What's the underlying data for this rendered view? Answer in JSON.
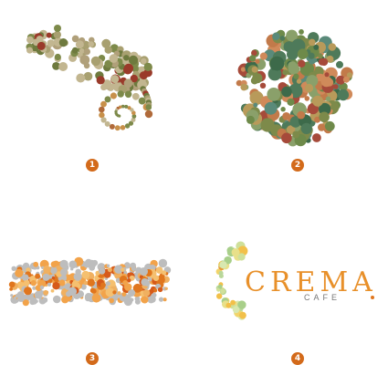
{
  "colors": {
    "badge": "#d36a1a",
    "tan": "#c2b690",
    "olive": "#7d8a4a",
    "rust": "#9a3a2a",
    "green_dark": "#3d6a4a",
    "teal": "#5a8a7a",
    "orange": "#e0761e",
    "orange_light": "#f2a34a",
    "grey_dot": "#bdbdbd",
    "crema_text": "#e8902a",
    "cafe_text": "#777777"
  },
  "panels": [
    {
      "number": "1",
      "motif": "chameleon-dots"
    },
    {
      "number": "2",
      "motif": "color-blind-test-circle"
    },
    {
      "number": "3",
      "motif": "orange-dot-band"
    },
    {
      "number": "4",
      "motif": "crescent-logo"
    }
  ],
  "logo": {
    "title": "CREMA",
    "subtitle": "CAFE"
  }
}
